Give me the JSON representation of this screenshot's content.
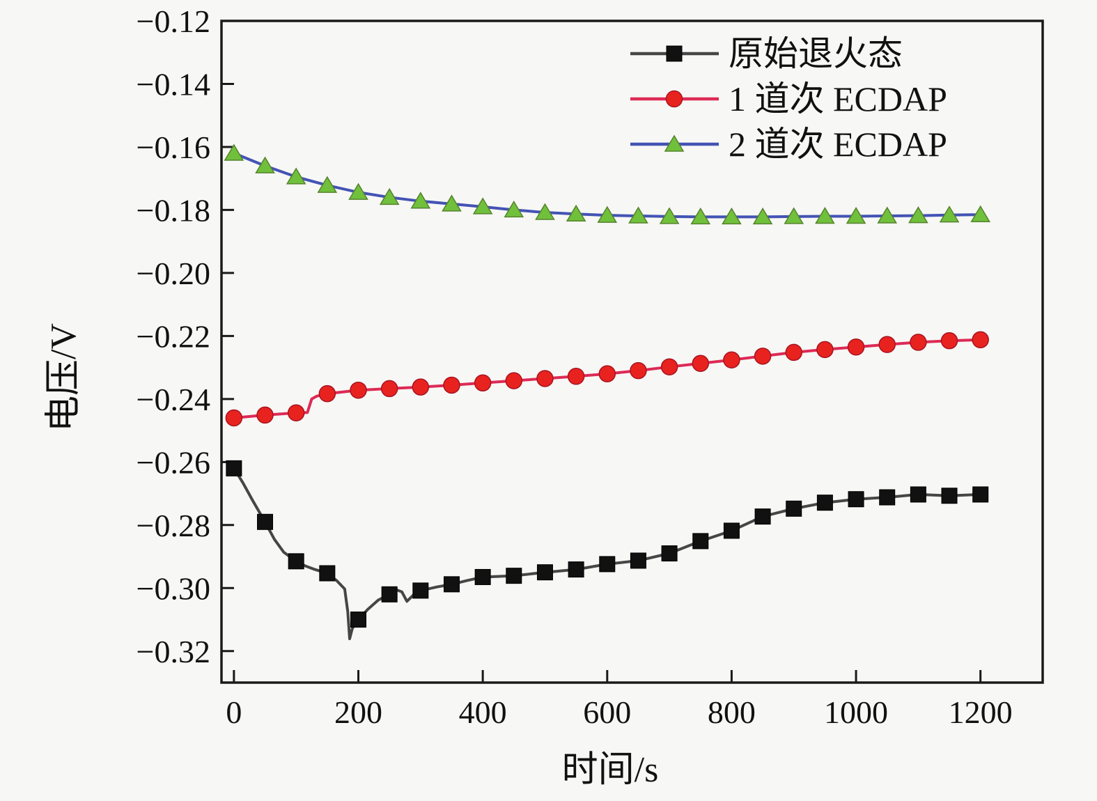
{
  "chart_data": {
    "type": "line",
    "title": "",
    "xlabel": "时间/s",
    "ylabel": "电压/V",
    "background": "#f7f7f5",
    "frame_color": "#1a1a1a",
    "grid": false,
    "legend_position": "top-right-inside",
    "xlim": [
      -20,
      1300
    ],
    "ylim": [
      -0.33,
      -0.12
    ],
    "xticks": [
      0,
      200,
      400,
      600,
      800,
      1000,
      1200
    ],
    "xtick_labels": [
      "0",
      "200",
      "400",
      "600",
      "800",
      "1000",
      "1200"
    ],
    "yticks": [
      -0.32,
      -0.3,
      -0.28,
      -0.26,
      -0.24,
      -0.22,
      -0.2,
      -0.18,
      -0.16,
      -0.14,
      -0.12
    ],
    "ytick_labels": [
      "−0.32",
      "−0.30",
      "−0.28",
      "−0.26",
      "−0.24",
      "−0.22",
      "−0.20",
      "−0.18",
      "−0.16",
      "−0.14",
      "−0.12"
    ],
    "x": [
      0,
      50,
      100,
      150,
      200,
      250,
      300,
      350,
      400,
      450,
      500,
      550,
      600,
      650,
      700,
      750,
      800,
      850,
      900,
      950,
      1000,
      1050,
      1100,
      1150,
      1200
    ],
    "series": [
      {
        "id": "original-annealed",
        "name": "原始退火态",
        "marker": "square",
        "line_color": "#464646",
        "marker_color": "#111111",
        "marker_edge": "#000000",
        "values": [
          -0.262,
          -0.279,
          -0.2915,
          -0.2953,
          -0.31,
          -0.302,
          -0.3008,
          -0.2988,
          -0.2965,
          -0.2961,
          -0.295,
          -0.2941,
          -0.2924,
          -0.2913,
          -0.289,
          -0.2851,
          -0.2818,
          -0.2773,
          -0.2748,
          -0.2729,
          -0.2718,
          -0.2712,
          -0.2703,
          -0.2707,
          -0.2703
        ],
        "line_path": [
          [
            0,
            -0.262
          ],
          [
            15,
            -0.2668
          ],
          [
            30,
            -0.2722
          ],
          [
            50,
            -0.279
          ],
          [
            65,
            -0.2845
          ],
          [
            80,
            -0.2886
          ],
          [
            100,
            -0.2915
          ],
          [
            115,
            -0.293
          ],
          [
            130,
            -0.2941
          ],
          [
            150,
            -0.2953
          ],
          [
            165,
            -0.2976
          ],
          [
            178,
            -0.3003
          ],
          [
            183,
            -0.3075
          ],
          [
            186,
            -0.3161
          ],
          [
            190,
            -0.313
          ],
          [
            196,
            -0.3108
          ],
          [
            200,
            -0.31
          ],
          [
            215,
            -0.3068
          ],
          [
            232,
            -0.3038
          ],
          [
            250,
            -0.302
          ],
          [
            262,
            -0.3006
          ],
          [
            270,
            -0.3012
          ],
          [
            278,
            -0.3042
          ],
          [
            289,
            -0.3021
          ],
          [
            300,
            -0.3008
          ],
          [
            325,
            -0.2997
          ],
          [
            350,
            -0.2988
          ],
          [
            375,
            -0.2976
          ],
          [
            400,
            -0.2965
          ],
          [
            450,
            -0.2961
          ],
          [
            500,
            -0.295
          ],
          [
            550,
            -0.2941
          ],
          [
            600,
            -0.2924
          ],
          [
            650,
            -0.2913
          ],
          [
            700,
            -0.289
          ],
          [
            750,
            -0.2851
          ],
          [
            800,
            -0.2818
          ],
          [
            850,
            -0.2773
          ],
          [
            900,
            -0.2748
          ],
          [
            950,
            -0.2729
          ],
          [
            1000,
            -0.2718
          ],
          [
            1050,
            -0.2712
          ],
          [
            1100,
            -0.2703
          ],
          [
            1150,
            -0.2707
          ],
          [
            1200,
            -0.2703
          ]
        ]
      },
      {
        "id": "ecdap-1-pass",
        "name": "1 道次 ECDAP",
        "marker": "circle",
        "line_color": "#dd2a55",
        "marker_color": "#e8231f",
        "marker_edge": "#a81220",
        "values": [
          -0.246,
          -0.2451,
          -0.2444,
          -0.2383,
          -0.2372,
          -0.2367,
          -0.2362,
          -0.2356,
          -0.2349,
          -0.2342,
          -0.2335,
          -0.2328,
          -0.232,
          -0.231,
          -0.2298,
          -0.2287,
          -0.2276,
          -0.2264,
          -0.2252,
          -0.2243,
          -0.2235,
          -0.2227,
          -0.222,
          -0.2215,
          -0.2212
        ],
        "line_path": [
          [
            0,
            -0.246
          ],
          [
            50,
            -0.2451
          ],
          [
            100,
            -0.2444
          ],
          [
            118,
            -0.2443
          ],
          [
            125,
            -0.24
          ],
          [
            133,
            -0.2391
          ],
          [
            150,
            -0.2383
          ],
          [
            200,
            -0.2372
          ],
          [
            250,
            -0.2367
          ],
          [
            300,
            -0.2362
          ],
          [
            350,
            -0.2356
          ],
          [
            400,
            -0.2349
          ],
          [
            450,
            -0.2342
          ],
          [
            500,
            -0.2335
          ],
          [
            550,
            -0.2328
          ],
          [
            600,
            -0.232
          ],
          [
            650,
            -0.231
          ],
          [
            700,
            -0.2298
          ],
          [
            750,
            -0.2287
          ],
          [
            800,
            -0.2276
          ],
          [
            850,
            -0.2264
          ],
          [
            900,
            -0.2252
          ],
          [
            950,
            -0.2243
          ],
          [
            1000,
            -0.2235
          ],
          [
            1050,
            -0.2227
          ],
          [
            1100,
            -0.222
          ],
          [
            1150,
            -0.2215
          ],
          [
            1200,
            -0.2212
          ]
        ]
      },
      {
        "id": "ecdap-2-pass",
        "name": "2 道次 ECDAP",
        "marker": "triangle",
        "line_color": "#4353b4",
        "marker_color": "#70c03c",
        "marker_edge": "#55822c",
        "values": [
          -0.162,
          -0.166,
          -0.1695,
          -0.1722,
          -0.1744,
          -0.176,
          -0.1772,
          -0.1781,
          -0.179,
          -0.18,
          -0.1808,
          -0.1813,
          -0.1817,
          -0.1819,
          -0.1821,
          -0.1822,
          -0.1822,
          -0.1822,
          -0.1821,
          -0.182,
          -0.182,
          -0.1819,
          -0.1818,
          -0.1816,
          -0.1815
        ]
      }
    ]
  }
}
